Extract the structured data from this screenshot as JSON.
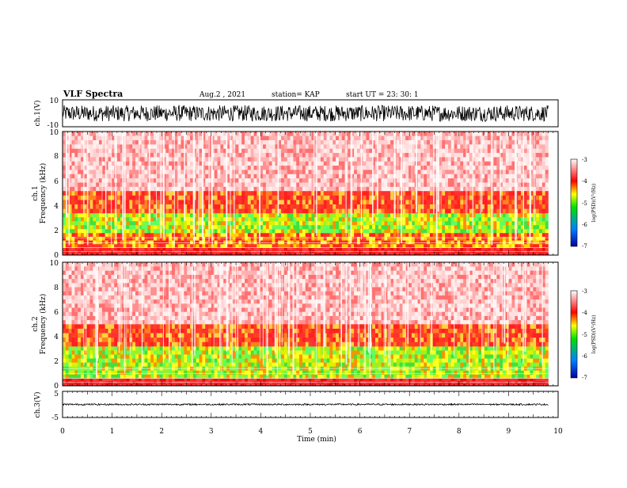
{
  "header": {
    "title": "VLF Spectra",
    "date": "Aug.2 , 2021",
    "station": "station= KAP",
    "start": "start UT = 23: 30: 1"
  },
  "chart_data": [
    {
      "type": "line",
      "name": "ch1-waveform",
      "ylabel": "ch.1(V)",
      "ylim": [
        -10,
        10
      ],
      "yticks": [
        "10",
        "-10"
      ],
      "xlim": [
        0,
        10
      ],
      "note_amplitude_range": [
        -6,
        6
      ]
    },
    {
      "type": "heatmap",
      "name": "ch1-spectrogram",
      "ylabel_line1": "ch.1",
      "ylabel_line2": "Frequency (kHz)",
      "ylim": [
        0,
        10
      ],
      "yticks": [
        "0",
        "2",
        "4",
        "6",
        "8",
        "10"
      ],
      "xlim": [
        0,
        9.8
      ],
      "bands": [
        {
          "fmin": 0,
          "fmax": 0.6,
          "level": "red"
        },
        {
          "fmin": 0.6,
          "fmax": 1.8,
          "level": "red-yellow"
        },
        {
          "fmin": 1.8,
          "fmax": 3.4,
          "level": "green-yellow"
        },
        {
          "fmin": 3.4,
          "fmax": 5.2,
          "level": "orange-red"
        },
        {
          "fmin": 5.2,
          "fmax": 10,
          "level": "pale-red"
        }
      ],
      "colorbar": {
        "label": "log(PSD)(V²/Hz)",
        "ticks": [
          "-3",
          "-4",
          "-5",
          "-6",
          "-7"
        ],
        "range": [
          -7,
          -3
        ],
        "colors": [
          "#0000a0",
          "#0080ff",
          "#00e000",
          "#ffff00",
          "#ff0000",
          "#ffffff"
        ]
      }
    },
    {
      "type": "heatmap",
      "name": "ch2-spectrogram",
      "ylabel_line1": "ch.2",
      "ylabel_line2": "Frequency (kHz)",
      "ylim": [
        0,
        10
      ],
      "yticks": [
        "0",
        "2",
        "4",
        "6",
        "8",
        "10"
      ],
      "xlim": [
        0,
        9.8
      ],
      "bands": [
        {
          "fmin": 0,
          "fmax": 0.6,
          "level": "red"
        },
        {
          "fmin": 0.6,
          "fmax": 3.2,
          "level": "green-yellow"
        },
        {
          "fmin": 3.2,
          "fmax": 5.0,
          "level": "orange-red"
        },
        {
          "fmin": 5.0,
          "fmax": 10,
          "level": "pale-red"
        }
      ],
      "colorbar": {
        "label": "log(PSD)(V²/Hz)",
        "ticks": [
          "-3",
          "-4",
          "-5",
          "-6",
          "-7"
        ],
        "range": [
          -7,
          -3
        ],
        "colors": [
          "#0000a0",
          "#0080ff",
          "#00e000",
          "#ffff00",
          "#ff0000",
          "#ffffff"
        ]
      }
    },
    {
      "type": "line",
      "name": "ch3-waveform",
      "ylabel": "ch.3(V)",
      "ylim": [
        -5,
        5
      ],
      "yticks": [
        "5",
        "-5"
      ],
      "xlim": [
        0,
        10
      ],
      "note_amplitude_range": [
        -0.3,
        0.3
      ],
      "xlabel": "Time (min)",
      "xticks": [
        "0",
        "1",
        "2",
        "3",
        "4",
        "5",
        "6",
        "7",
        "8",
        "9",
        "10"
      ]
    }
  ]
}
